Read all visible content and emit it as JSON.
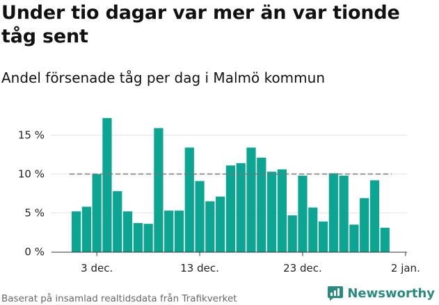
{
  "header": {
    "title": "Under tio dagar var mer än var tionde tåg sent",
    "subtitle": "Andel försenade tåg per dag i Malmö kommun"
  },
  "footer": {
    "source": "Baserat på insamlad realtidsdata från Trafikverket",
    "brand": "Newsworthy"
  },
  "colors": {
    "bar": "#0ba592",
    "reference_line": "#777777",
    "brand": "#2a8a7e"
  },
  "chart_data": {
    "type": "bar",
    "x_start": "2018-12-01",
    "x": [
      "1 dec.",
      "2 dec.",
      "3 dec.",
      "4 dec.",
      "5 dec.",
      "6 dec.",
      "7 dec.",
      "8 dec.",
      "9 dec.",
      "10 dec.",
      "11 dec.",
      "12 dec.",
      "13 dec.",
      "14 dec.",
      "15 dec.",
      "16 dec.",
      "17 dec.",
      "18 dec.",
      "19 dec.",
      "20 dec.",
      "21 dec.",
      "22 dec.",
      "23 dec.",
      "24 dec.",
      "25 dec.",
      "26 dec.",
      "27 dec.",
      "28 dec.",
      "29 dec.",
      "30 dec.",
      "31 dec."
    ],
    "values": [
      5.2,
      5.8,
      10.0,
      17.2,
      7.8,
      5.2,
      3.7,
      3.6,
      15.9,
      5.3,
      5.3,
      13.4,
      9.1,
      6.5,
      7.1,
      11.1,
      11.4,
      13.4,
      12.1,
      10.3,
      10.6,
      4.7,
      9.8,
      5.7,
      3.9,
      10.1,
      9.8,
      3.5,
      6.9,
      9.2,
      3.1
    ],
    "reference_line": 10,
    "ylim": [
      0,
      19
    ],
    "y_ticks": [
      0,
      5,
      10,
      15
    ],
    "y_tick_labels": [
      "0 %",
      "5 %",
      "10 %",
      "15 %"
    ],
    "x_tick_labels": [
      "3 dec.",
      "13 dec.",
      "23 dec.",
      "2 jan."
    ],
    "x_tick_positions": [
      2,
      12,
      22,
      32
    ],
    "title": "",
    "xlabel": "",
    "ylabel": "",
    "grid": "horizontal",
    "legend": "none"
  }
}
